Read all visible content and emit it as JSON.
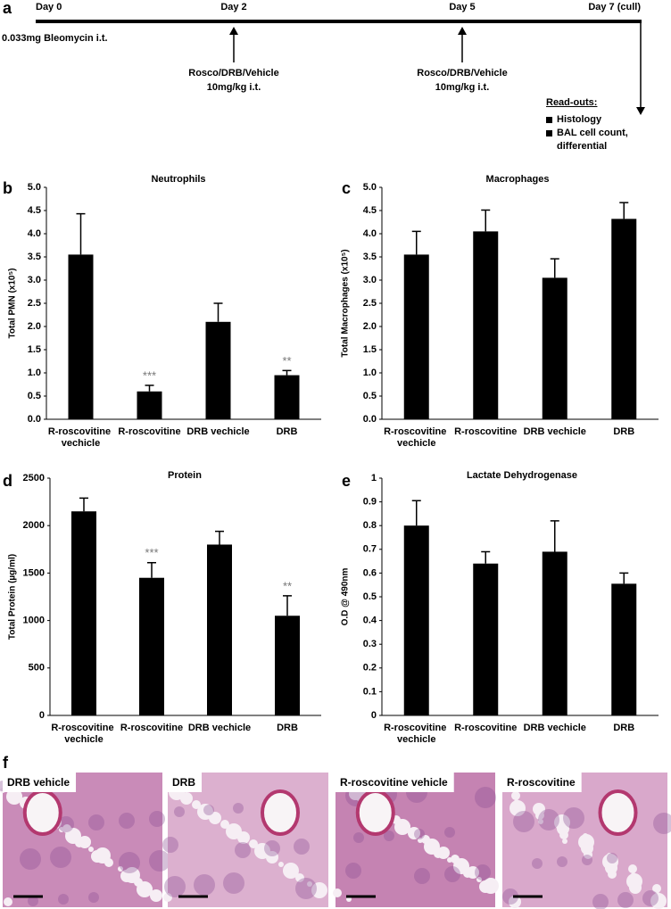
{
  "timeline": {
    "panel": "a",
    "days": [
      "Day 0",
      "Day 2",
      "Day 5",
      "Day 7 (cull)"
    ],
    "dose": "0.033mg Bleomycin i.t.",
    "treatments": [
      {
        "line1": "Rosco/DRB/Vehicle",
        "line2": "10mg/kg i.t."
      },
      {
        "line1": "Rosco/DRB/Vehicle",
        "line2": "10mg/kg i.t."
      }
    ],
    "readouts_title": "Read-outs:",
    "readouts": [
      "Histology",
      "BAL cell count, differential"
    ]
  },
  "chart_data": [
    {
      "type": "bar",
      "panel": "b",
      "title": "Neutrophils",
      "y_label": "Total PMN (x10⁵)",
      "categories": [
        "R-roscovitine vechicle",
        "R-roscovitine",
        "DRB vechicle",
        "DRB"
      ],
      "values": [
        3.55,
        0.6,
        2.1,
        0.95
      ],
      "errors": [
        0.88,
        0.13,
        0.4,
        0.1
      ],
      "color": "#000000",
      "ylim": [
        0,
        5
      ],
      "yticks": [
        {
          "value": 0,
          "label": "0.0"
        },
        {
          "value": 0.5,
          "label": "0.5"
        },
        {
          "value": 1,
          "label": "1.0"
        },
        {
          "value": 1.5,
          "label": "1.5"
        },
        {
          "value": 2,
          "label": "2.0"
        },
        {
          "value": 2.5,
          "label": "2.5"
        },
        {
          "value": 3,
          "label": "3.0"
        },
        {
          "value": 3.5,
          "label": "3.5"
        },
        {
          "value": 4,
          "label": "4.0"
        },
        {
          "value": 4.5,
          "label": "4.5"
        },
        {
          "value": 5,
          "label": "5.0"
        }
      ],
      "annotations": [
        {
          "category": "R-roscovitine",
          "text": "***"
        },
        {
          "category": "DRB",
          "text": "**"
        }
      ]
    },
    {
      "type": "bar",
      "panel": "c",
      "title": "Macrophages",
      "y_label": "Total Macrophages (x10⁵)",
      "categories": [
        "R-roscovitine vechicle",
        "R-roscovitine",
        "DRB vechicle",
        "DRB"
      ],
      "values": [
        3.55,
        4.05,
        3.05,
        4.32
      ],
      "errors": [
        0.5,
        0.46,
        0.41,
        0.35
      ],
      "color": "#000000",
      "ylim": [
        0,
        5
      ],
      "yticks": [
        {
          "value": 0,
          "label": "0.0"
        },
        {
          "value": 0.5,
          "label": "0.5"
        },
        {
          "value": 1,
          "label": "1.0"
        },
        {
          "value": 1.5,
          "label": "1.5"
        },
        {
          "value": 2,
          "label": "2.0"
        },
        {
          "value": 2.5,
          "label": "2.5"
        },
        {
          "value": 3,
          "label": "3.0"
        },
        {
          "value": 3.5,
          "label": "3.5"
        },
        {
          "value": 4,
          "label": "4.0"
        },
        {
          "value": 4.5,
          "label": "4.5"
        },
        {
          "value": 5,
          "label": "5.0"
        }
      ],
      "annotations": []
    },
    {
      "type": "bar",
      "panel": "d",
      "title": "Protein",
      "y_label": "Total Protein (µg/ml)",
      "categories": [
        "R-roscovitine vechicle",
        "R-roscovitine",
        "DRB vechicle",
        "DRB"
      ],
      "values": [
        2150,
        1450,
        1800,
        1050
      ],
      "errors": [
        140,
        160,
        140,
        210
      ],
      "color": "#000000",
      "ylim": [
        0,
        2500
      ],
      "yticks": [
        0,
        500,
        1000,
        1500,
        2000,
        2500
      ],
      "annotations": [
        {
          "category": "R-roscovitine",
          "text": "***"
        },
        {
          "category": "DRB",
          "text": "**"
        }
      ]
    },
    {
      "type": "bar",
      "panel": "e",
      "title": "Lactate Dehydrogenase",
      "y_label": "O.D @ 490nm",
      "categories": [
        "R-roscovitine vechicle",
        "R-roscovitine",
        "DRB vechicle",
        "DRB"
      ],
      "values": [
        0.8,
        0.64,
        0.69,
        0.555
      ],
      "errors": [
        0.105,
        0.05,
        0.13,
        0.045
      ],
      "color": "#000000",
      "ylim": [
        0,
        1
      ],
      "yticks": [
        0,
        0.1,
        0.2,
        0.3,
        0.4,
        0.5,
        0.6,
        0.7,
        0.8,
        0.9,
        1
      ],
      "annotations": []
    }
  ],
  "histology": {
    "panel": "f",
    "images": [
      {
        "label": "DRB vehicle"
      },
      {
        "label": "DRB"
      },
      {
        "label": "R-roscovitine vehicle"
      },
      {
        "label": "R-roscovitine"
      }
    ]
  }
}
